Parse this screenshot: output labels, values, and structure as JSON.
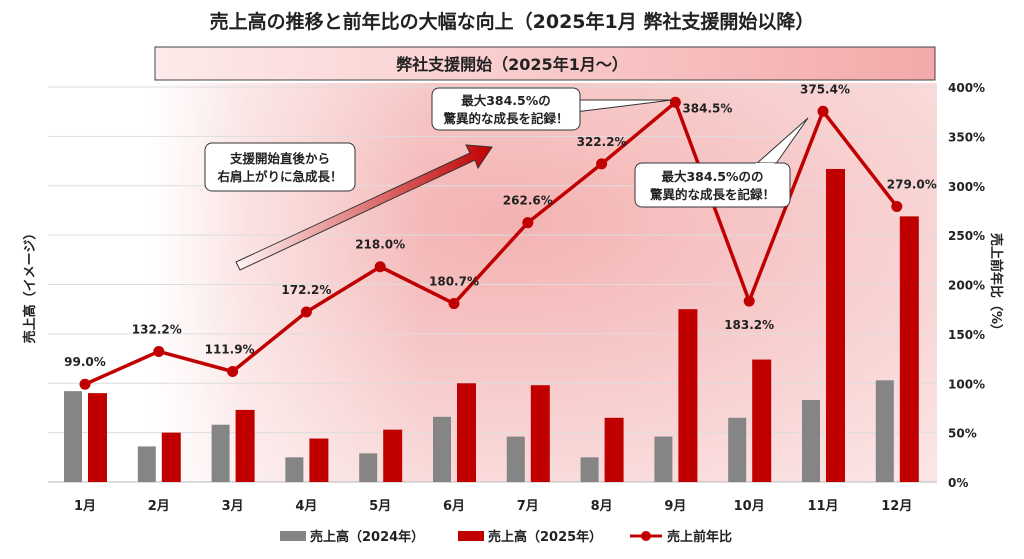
{
  "chart_data": {
    "type": "bar+line",
    "title": "売上高の推移と前年比の大幅な向上（2025年1月 弊社支援開始以降）",
    "banner": "弊社支援開始（2025年1月〜）",
    "categories": [
      "1月",
      "2月",
      "3月",
      "4月",
      "5月",
      "6月",
      "7月",
      "8月",
      "9月",
      "10月",
      "11月",
      "12月"
    ],
    "ylabel_left": "売上高（イメージ）",
    "ylabel_right": "売上前年比（%）",
    "y_right_ticks": [
      "0%",
      "50%",
      "100%",
      "150%",
      "200%",
      "250%",
      "300%",
      "350%",
      "400%"
    ],
    "y_right_range": [
      0,
      400
    ],
    "grid": true,
    "legend_position": "bottom",
    "series": [
      {
        "name": "売上高（2024年）",
        "type": "bar",
        "color": "#858585",
        "values": [
          92,
          36,
          58,
          25,
          29,
          66,
          46,
          25,
          46,
          65,
          83,
          103
        ]
      },
      {
        "name": "売上高（2025年）",
        "type": "bar",
        "color": "#c00000",
        "values": [
          90,
          50,
          73,
          44,
          53,
          100,
          98,
          65,
          175,
          124,
          317,
          269
        ]
      },
      {
        "name": "売上前年比",
        "type": "line",
        "color": "#c00000",
        "values": [
          99.0,
          132.2,
          111.9,
          172.2,
          218.0,
          180.7,
          262.6,
          322.2,
          384.5,
          183.2,
          375.4,
          279.0
        ],
        "labels": [
          "99.0%",
          "132.2%",
          "111.9%",
          "172.2%",
          "218.0%",
          "180.7%",
          "262.6%",
          "322.2%",
          "384.5%",
          "183.2%",
          "375.4%",
          "279.0%"
        ]
      }
    ],
    "annotations": [
      {
        "lines": [
          "支援開始直後から",
          "右肩上がりに急成長！"
        ]
      },
      {
        "lines": [
          "最大384.5%の",
          "驚異的な成長を記録！"
        ]
      },
      {
        "lines": [
          "最大384.5%のの",
          "驚異的な成長を記録！"
        ]
      }
    ]
  }
}
